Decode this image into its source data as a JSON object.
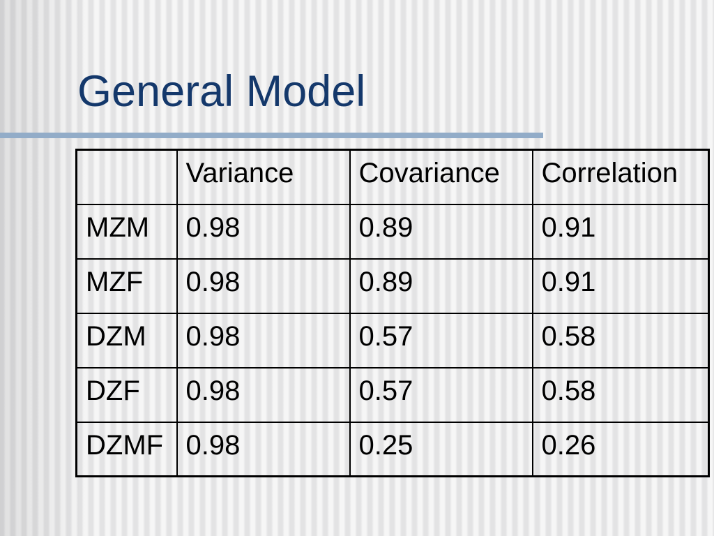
{
  "slide": {
    "title": "General Model"
  },
  "theme": {
    "title_color": "#14386b",
    "accent_line_color": "#92acc8",
    "stripe_light": "#f6f6f6",
    "stripe_dark": "#e3e3e4",
    "table_border_color": "#000000",
    "table_text_color": "#000000"
  },
  "table": {
    "headers": [
      "",
      "Variance",
      "Covariance",
      "Correlation"
    ],
    "rows": [
      {
        "label": "MZM",
        "values": [
          "0.98",
          "0.89",
          "0.91"
        ]
      },
      {
        "label": "MZF",
        "values": [
          "0.98",
          "0.89",
          "0.91"
        ]
      },
      {
        "label": "DZM",
        "values": [
          "0.98",
          "0.57",
          "0.58"
        ]
      },
      {
        "label": "DZF",
        "values": [
          "0.98",
          "0.57",
          "0.58"
        ]
      },
      {
        "label": "DZMF",
        "values": [
          "0.98",
          "0.25",
          "0.26"
        ]
      }
    ]
  }
}
